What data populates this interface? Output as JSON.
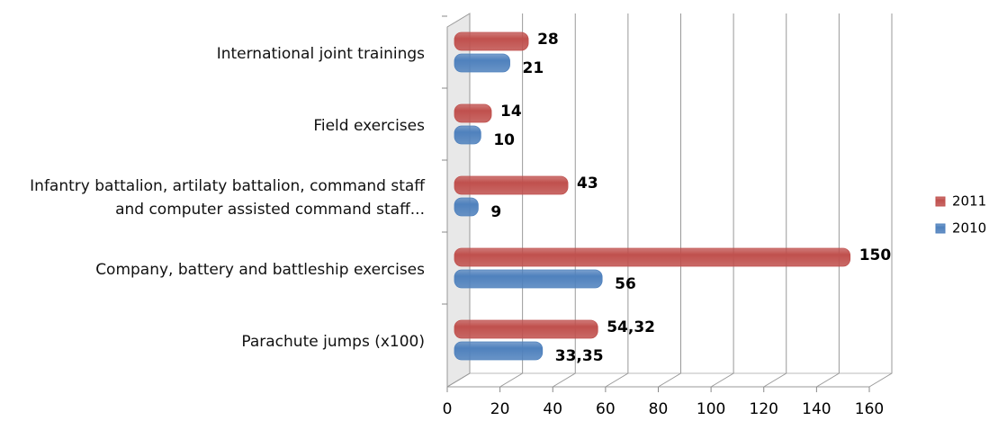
{
  "chart_data": {
    "type": "bar",
    "orientation": "horizontal",
    "categories": [
      "International joint trainings",
      "Field exercises",
      "Infantry battalion, artilaty battalion, command staff and computer assisted command staff...",
      "Company, battery and battleship exercises",
      "Parachute jumps (x100)"
    ],
    "series": [
      {
        "name": "2011",
        "color": "#c0504d",
        "values": [
          28,
          14,
          43,
          150,
          54.32
        ],
        "value_labels": [
          "28",
          "14",
          "43",
          "150",
          "54,32"
        ]
      },
      {
        "name": "2010",
        "color": "#4f81bd",
        "values": [
          21,
          10,
          9,
          56,
          33.35
        ],
        "value_labels": [
          "21",
          "10",
          "9",
          "56",
          "33,35"
        ]
      }
    ],
    "xlim": [
      0,
      160
    ],
    "xticks": [
      0,
      20,
      40,
      60,
      80,
      100,
      120,
      140,
      160
    ],
    "grid": true,
    "legend": "right"
  }
}
